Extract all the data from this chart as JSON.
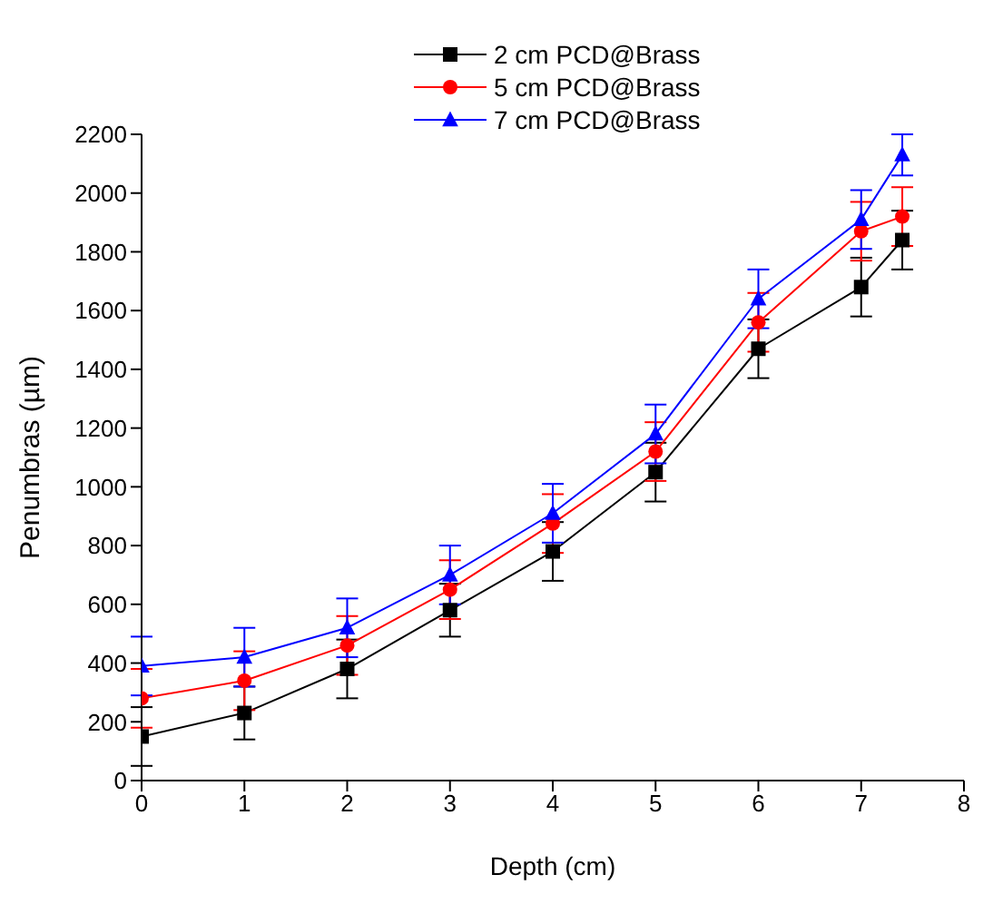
{
  "chart_data": {
    "type": "line",
    "xlabel": "Depth (cm)",
    "ylabel": "Penumbras (µm)",
    "x": [
      0,
      1,
      2,
      3,
      4,
      5,
      6,
      7,
      7.4
    ],
    "xlim": [
      0,
      8
    ],
    "xticks": [
      0,
      1,
      2,
      3,
      4,
      5,
      6,
      7,
      8
    ],
    "ylim": [
      0,
      2200
    ],
    "yticks": [
      0,
      200,
      400,
      600,
      800,
      1000,
      1200,
      1400,
      1600,
      1800,
      2000,
      2200
    ],
    "grid": false,
    "legend": "top",
    "line_style": "solid",
    "series": [
      {
        "name": "2 cm PCD@Brass",
        "color": "#000000",
        "marker": "square",
        "values": [
          150,
          230,
          380,
          580,
          780,
          1050,
          1470,
          1680,
          1840
        ],
        "errors": [
          100,
          90,
          100,
          90,
          100,
          100,
          100,
          100,
          100
        ]
      },
      {
        "name": "5 cm PCD@Brass",
        "color": "#ff0000",
        "marker": "circle",
        "values": [
          280,
          340,
          460,
          650,
          875,
          1120,
          1560,
          1870,
          1920
        ],
        "errors": [
          100,
          100,
          100,
          100,
          100,
          100,
          100,
          100,
          100
        ]
      },
      {
        "name": "7 cm PCD@Brass",
        "color": "#0000ff",
        "marker": "triangle",
        "values": [
          390,
          420,
          520,
          700,
          910,
          1180,
          1640,
          1910,
          2130
        ],
        "errors": [
          100,
          100,
          100,
          100,
          100,
          100,
          100,
          100,
          70
        ]
      }
    ]
  }
}
